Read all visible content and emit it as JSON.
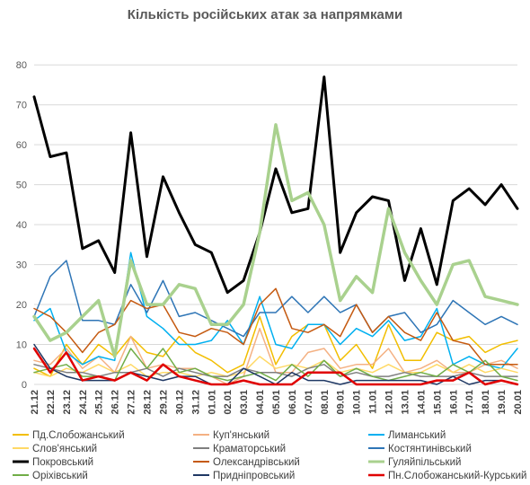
{
  "chart_data": {
    "type": "line",
    "title": "Кількість російських атак за напрямками",
    "xlabel": "",
    "ylabel": "",
    "ylim": [
      0,
      85
    ],
    "yticks": [
      0,
      10,
      20,
      30,
      40,
      50,
      60,
      70,
      80
    ],
    "grid": true,
    "legend_position": "bottom",
    "x": [
      "21.12",
      "22.12",
      "23.12",
      "24.12",
      "25.12",
      "26.12",
      "27.12",
      "28.12",
      "29.12",
      "30.12",
      "31.12",
      "01.01",
      "02.01",
      "03.01",
      "04.01",
      "05.01",
      "06.01",
      "07.01",
      "08.01",
      "09.01",
      "10.01",
      "11.01",
      "12.01",
      "13.01",
      "14.01",
      "15.01",
      "16.01",
      "17.01",
      "18.01",
      "19.01",
      "20.01"
    ],
    "series": [
      {
        "name": "Пд.Слобожанський",
        "color": "#F2BE00",
        "width": 1.5,
        "values": [
          4,
          2,
          10,
          5,
          10,
          7,
          12,
          8,
          7,
          12,
          8,
          6,
          3,
          5,
          17,
          5,
          12,
          15,
          15,
          6,
          10,
          4,
          15,
          6,
          6,
          13,
          11,
          12,
          8,
          10,
          11
        ]
      },
      {
        "name": "Куп'янський",
        "color": "#F4B183",
        "width": 1.5,
        "values": [
          6,
          5,
          9,
          4,
          7,
          3,
          12,
          4,
          5,
          4,
          4,
          2,
          0,
          2,
          14,
          3,
          3,
          8,
          9,
          4,
          5,
          5,
          9,
          3,
          4,
          6,
          3,
          3,
          5,
          6,
          4
        ]
      },
      {
        "name": "Лиманський",
        "color": "#00B0F0",
        "width": 1.5,
        "values": [
          16,
          19,
          8,
          5,
          7,
          6,
          33,
          17,
          14,
          10,
          10,
          11,
          16,
          10,
          22,
          10,
          9,
          15,
          15,
          10,
          14,
          12,
          16,
          11,
          12,
          19,
          5,
          7,
          5,
          4,
          9
        ]
      },
      {
        "name": "Слов'янський",
        "color": "#FFD966",
        "width": 1.5,
        "values": [
          3,
          2,
          4,
          3,
          5,
          3,
          5,
          2,
          3,
          3,
          2,
          3,
          2,
          3,
          7,
          4,
          5,
          4,
          6,
          3,
          4,
          3,
          5,
          3,
          3,
          5,
          3,
          5,
          3,
          4,
          3
        ]
      },
      {
        "name": "Краматорський",
        "color": "#7F7F7F",
        "width": 1.5,
        "values": [
          5,
          4,
          3,
          3,
          2,
          3,
          3,
          4,
          2,
          4,
          3,
          2,
          2,
          4,
          3,
          3,
          2,
          4,
          5,
          2,
          3,
          2,
          2,
          3,
          2,
          2,
          2,
          3,
          2,
          2,
          2
        ]
      },
      {
        "name": "Костянтинівський",
        "color": "#2E75B6",
        "width": 1.5,
        "values": [
          17,
          27,
          31,
          16,
          16,
          15,
          25,
          18,
          26,
          17,
          18,
          16,
          14,
          12,
          18,
          18,
          22,
          18,
          22,
          18,
          20,
          13,
          17,
          18,
          13,
          15,
          21,
          18,
          15,
          17,
          15
        ]
      },
      {
        "name": "Покровський",
        "color": "#000000",
        "width": 3,
        "values": [
          72,
          57,
          58,
          34,
          36,
          28,
          63,
          32,
          52,
          43,
          35,
          33,
          23,
          26,
          38,
          54,
          43,
          44,
          77,
          33,
          43,
          47,
          46,
          26,
          39,
          25,
          46,
          49,
          45,
          50,
          44
        ]
      },
      {
        "name": "Олександрівський",
        "color": "#C55A11",
        "width": 1.5,
        "values": [
          19,
          17,
          13,
          8,
          13,
          15,
          21,
          19,
          20,
          13,
          12,
          14,
          13,
          10,
          20,
          24,
          14,
          13,
          15,
          12,
          20,
          13,
          17,
          13,
          11,
          18,
          11,
          10,
          5,
          5,
          5
        ]
      },
      {
        "name": "Гуляйпільський",
        "color": "#A9D18E",
        "width": 3.5,
        "values": [
          17,
          11,
          13,
          17,
          21,
          7,
          31,
          20,
          20,
          25,
          24,
          15,
          15,
          20,
          38,
          65,
          46,
          48,
          40,
          21,
          27,
          23,
          44,
          33,
          26,
          20,
          30,
          31,
          22,
          21,
          20
        ]
      },
      {
        "name": "Оріхівський",
        "color": "#70AD47",
        "width": 1.5,
        "values": [
          3,
          4,
          5,
          2,
          2,
          1,
          9,
          4,
          9,
          3,
          4,
          2,
          1,
          2,
          3,
          1,
          5,
          2,
          6,
          2,
          4,
          2,
          1,
          2,
          3,
          2,
          5,
          3,
          6,
          2,
          1
        ]
      },
      {
        "name": "Придніпровський",
        "color": "#1F3864",
        "width": 1.5,
        "values": [
          10,
          4,
          2,
          1,
          1,
          1,
          3,
          2,
          1,
          2,
          2,
          0,
          0,
          4,
          2,
          0,
          3,
          1,
          1,
          0,
          1,
          1,
          1,
          1,
          1,
          0,
          2,
          0,
          1,
          1,
          0
        ]
      },
      {
        "name": "Пн.Слобожанський-Курський",
        "color": "#E00000",
        "width": 2.5,
        "values": [
          9,
          3,
          8,
          1,
          2,
          1,
          3,
          1,
          5,
          2,
          1,
          0,
          0,
          1,
          0,
          0,
          0,
          3,
          3,
          3,
          0,
          0,
          0,
          0,
          0,
          1,
          1,
          3,
          0,
          1,
          0
        ]
      }
    ]
  }
}
